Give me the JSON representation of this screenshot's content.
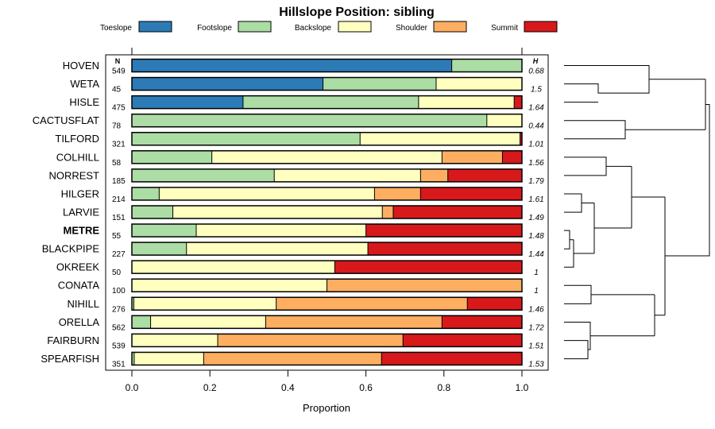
{
  "chart_data": {
    "type": "bar",
    "orientation": "horizontal-stacked",
    "title": "Hillslope Position: sibling",
    "xlabel": "Proportion",
    "ylabel": "",
    "xlim": [
      0,
      1
    ],
    "xticks": [
      "0.0",
      "0.2",
      "0.4",
      "0.6",
      "0.8",
      "1.0"
    ],
    "n_header": "N",
    "h_header": "H",
    "highlight": "METRE",
    "legend": [
      {
        "name": "Toeslope",
        "color": "#2c7bb6"
      },
      {
        "name": "Footslope",
        "color": "#abdda4"
      },
      {
        "name": "Backslope",
        "color": "#ffffbf"
      },
      {
        "name": "Shoulder",
        "color": "#fdae61"
      },
      {
        "name": "Summit",
        "color": "#d7191c"
      }
    ],
    "categories": [
      "HOVEN",
      "WETA",
      "HISLE",
      "CACTUSFLAT",
      "TILFORD",
      "COLHILL",
      "NORREST",
      "HILGER",
      "LARVIE",
      "METRE",
      "BLACKPIPE",
      "OKREEK",
      "CONATA",
      "NIHILL",
      "ORELLA",
      "FAIRBURN",
      "SPEARFISH"
    ],
    "n": [
      "549",
      "45",
      "475",
      "78",
      "321",
      "58",
      "185",
      "214",
      "151",
      "55",
      "227",
      "50",
      "100",
      "276",
      "562",
      "539",
      "351"
    ],
    "h": [
      "0.68",
      "1.5",
      "1.64",
      "0.44",
      "1.01",
      "1.56",
      "1.79",
      "1.61",
      "1.49",
      "1.48",
      "1.44",
      "1",
      "1",
      "1.46",
      "1.72",
      "1.51",
      "1.53"
    ],
    "series": [
      {
        "name": "Toeslope",
        "values": [
          0.82,
          0.49,
          0.285,
          0,
          0,
          0,
          0,
          0,
          0,
          0,
          0,
          0,
          0,
          0,
          0,
          0,
          0
        ]
      },
      {
        "name": "Footslope",
        "values": [
          0.18,
          0.29,
          0.45,
          0.91,
          0.585,
          0.205,
          0.365,
          0.07,
          0.105,
          0.165,
          0.14,
          0,
          0,
          0.005,
          0.048,
          0,
          0.006
        ]
      },
      {
        "name": "Backslope",
        "values": [
          0,
          0.22,
          0.245,
          0.09,
          0.41,
          0.59,
          0.375,
          0.552,
          0.537,
          0.435,
          0.465,
          0.52,
          0.5,
          0.365,
          0.295,
          0.22,
          0.178
        ]
      },
      {
        "name": "Shoulder",
        "values": [
          0,
          0,
          0,
          0,
          0,
          0.155,
          0.07,
          0.118,
          0.028,
          0,
          0,
          0,
          0.5,
          0.49,
          0.452,
          0.475,
          0.456
        ]
      },
      {
        "name": "Summit",
        "values": [
          0,
          0,
          0.02,
          0,
          0.005,
          0.05,
          0.19,
          0.26,
          0.33,
          0.4,
          0.395,
          0.48,
          0,
          0.14,
          0.205,
          0.305,
          0.36
        ]
      }
    ]
  }
}
